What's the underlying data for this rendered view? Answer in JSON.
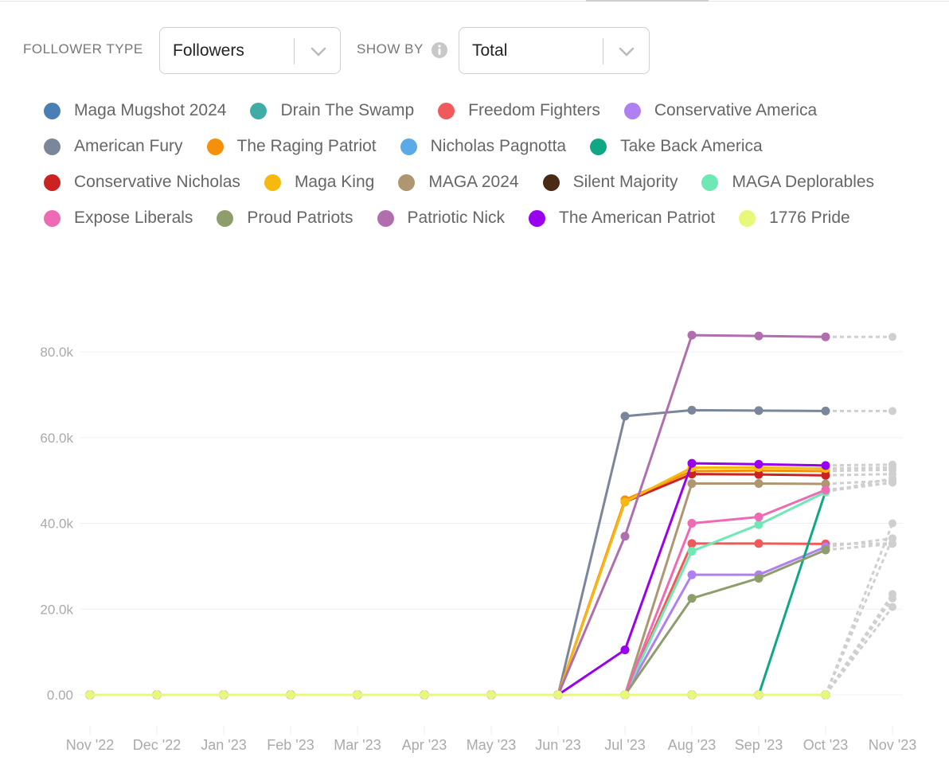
{
  "controls": {
    "follower_type_label": "FOLLOWER TYPE",
    "follower_type_value": "Followers",
    "show_by_label": "SHOW BY",
    "show_by_value": "Total"
  },
  "chart_data": {
    "type": "line",
    "categories": [
      "Nov '22",
      "Dec '22",
      "Jan '23",
      "Feb '23",
      "Mar '23",
      "Apr '23",
      "May '23",
      "Jun '23",
      "Jul '23",
      "Aug '23",
      "Sep '23",
      "Oct '23",
      "Nov '23"
    ],
    "dashed_after": "Oct '23",
    "forecast_color": "#cfcfcf",
    "ylim": [
      0,
      88000
    ],
    "yticks": [
      {
        "value": 0,
        "label": "0.00"
      },
      {
        "value": 20000,
        "label": "20.0k"
      },
      {
        "value": 40000,
        "label": "40.0k"
      },
      {
        "value": 60000,
        "label": "60.0k"
      },
      {
        "value": 80000,
        "label": "80.0k"
      }
    ],
    "grid": true,
    "series": [
      {
        "name": "Maga Mugshot 2024",
        "color": "#4a7fb5",
        "values": [
          0,
          0,
          0,
          0,
          0,
          0,
          0,
          0,
          0,
          0,
          0,
          0,
          20500
        ]
      },
      {
        "name": "Drain The Swamp",
        "color": "#40aca6",
        "values": [
          0,
          0,
          0,
          0,
          0,
          0,
          0,
          0,
          0,
          0,
          0,
          0,
          22500
        ]
      },
      {
        "name": "Freedom Fighters",
        "color": "#f05a5a",
        "values": [
          0,
          0,
          0,
          0,
          0,
          0,
          0,
          0,
          0,
          35300,
          35300,
          35200,
          35300
        ]
      },
      {
        "name": "Conservative America",
        "color": "#b07ff0",
        "values": [
          0,
          0,
          0,
          0,
          0,
          0,
          0,
          0,
          0,
          28000,
          28000,
          34500,
          36500
        ]
      },
      {
        "name": "American Fury",
        "color": "#7a8699",
        "values": [
          0,
          0,
          0,
          0,
          0,
          0,
          0,
          0,
          65000,
          66400,
          66300,
          66200,
          66200
        ]
      },
      {
        "name": "The Raging Patriot",
        "color": "#f5900a",
        "values": [
          0,
          0,
          0,
          0,
          0,
          0,
          0,
          0,
          45500,
          52200,
          52300,
          52200,
          52500
        ]
      },
      {
        "name": "Nicholas Pagnotta",
        "color": "#5aaae8",
        "values": [
          0,
          0,
          0,
          0,
          0,
          0,
          0,
          0,
          0,
          0,
          0,
          0,
          23500
        ]
      },
      {
        "name": "Take Back America",
        "color": "#10a884",
        "values": [
          0,
          0,
          0,
          0,
          0,
          0,
          0,
          0,
          0,
          0,
          0,
          47500,
          49500
        ]
      },
      {
        "name": "Conservative Nicholas",
        "color": "#cc2222",
        "values": [
          0,
          0,
          0,
          0,
          0,
          0,
          0,
          0,
          45000,
          51500,
          51400,
          51200,
          51500
        ]
      },
      {
        "name": "Maga King",
        "color": "#f7b90f",
        "values": [
          0,
          0,
          0,
          0,
          0,
          0,
          0,
          0,
          45000,
          53000,
          53000,
          52800,
          53000
        ]
      },
      {
        "name": "MAGA 2024",
        "color": "#ae9670",
        "values": [
          0,
          0,
          0,
          0,
          0,
          0,
          0,
          0,
          0,
          49300,
          49300,
          49200,
          50000
        ]
      },
      {
        "name": "Silent Majority",
        "color": "#4a2a14",
        "values": [
          0,
          0,
          0,
          0,
          0,
          0,
          0,
          0,
          0,
          0,
          0,
          0,
          40000
        ]
      },
      {
        "name": "MAGA Deplorables",
        "color": "#6ee8b4",
        "values": [
          0,
          0,
          0,
          0,
          0,
          0,
          0,
          0,
          0,
          33500,
          39700,
          47300,
          50500
        ]
      },
      {
        "name": "Expose Liberals",
        "color": "#ee6ab4",
        "values": [
          0,
          0,
          0,
          0,
          0,
          0,
          0,
          0,
          0,
          40000,
          41500,
          47800,
          49500
        ]
      },
      {
        "name": "Proud Patriots",
        "color": "#8d9e6c",
        "values": [
          0,
          0,
          0,
          0,
          0,
          0,
          0,
          0,
          0,
          22500,
          27200,
          33800,
          35200
        ]
      },
      {
        "name": "Patriotic Nick",
        "color": "#b06eae",
        "values": [
          0,
          0,
          0,
          0,
          0,
          0,
          0,
          0,
          37000,
          83900,
          83700,
          83500,
          83500
        ]
      },
      {
        "name": "The American Patriot",
        "color": "#9900ee",
        "values": [
          0,
          0,
          0,
          0,
          0,
          0,
          0,
          0,
          10500,
          54000,
          53800,
          53500,
          53700
        ]
      },
      {
        "name": "1776 Pride",
        "color": "#e8f87a",
        "values": [
          0,
          0,
          0,
          0,
          0,
          0,
          0,
          0,
          0,
          0,
          0,
          0,
          36500
        ]
      }
    ]
  }
}
